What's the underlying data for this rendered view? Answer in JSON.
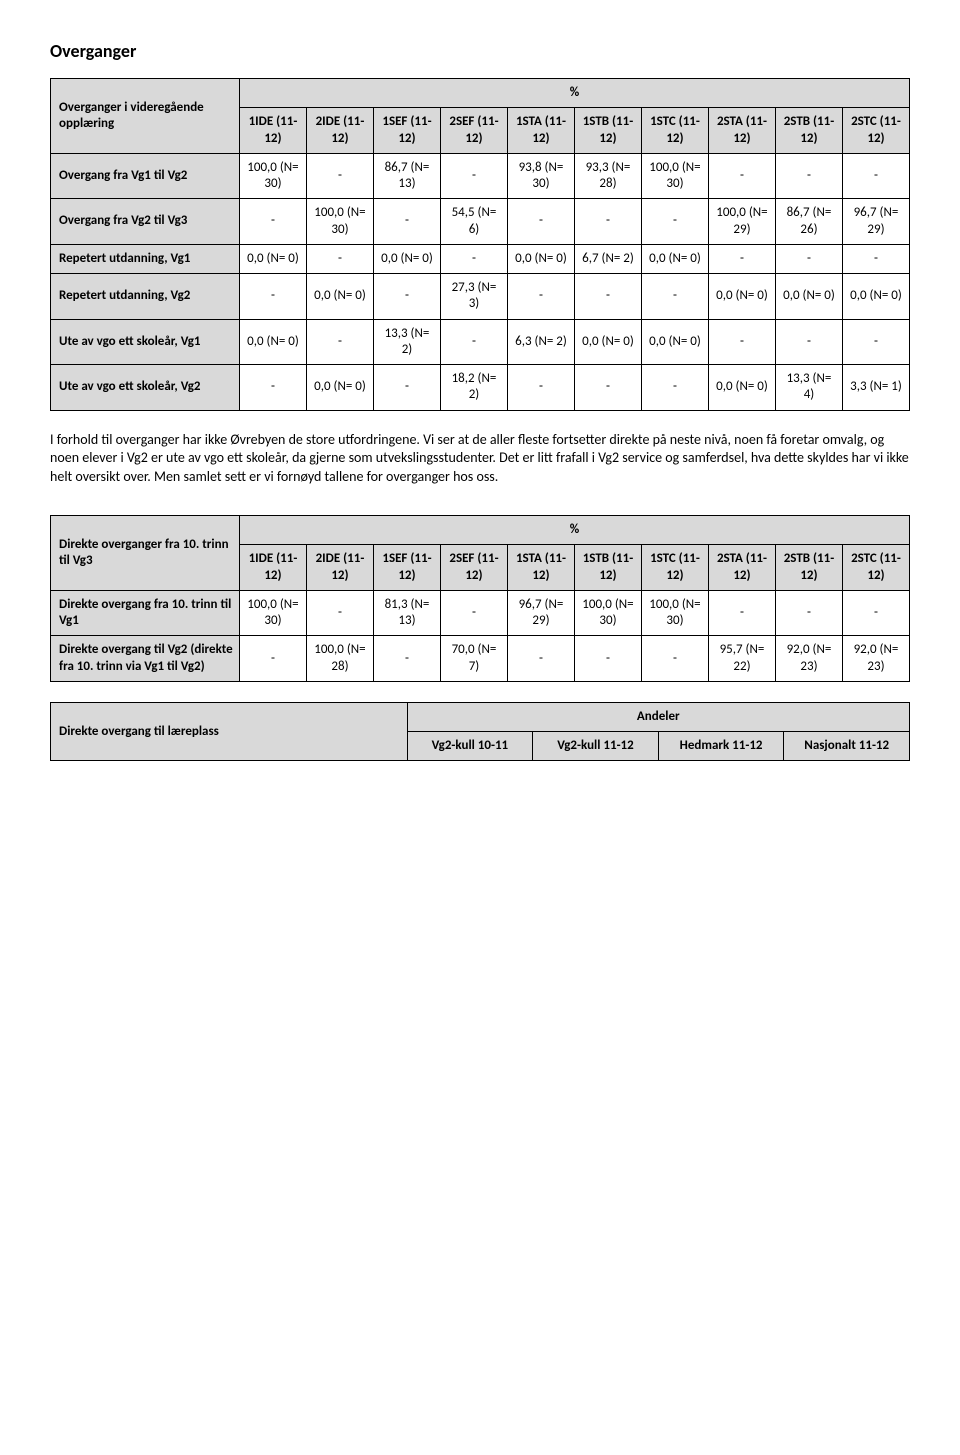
{
  "title1": "Overganger",
  "table1": {
    "corner": "Overganger i videregående opplæring",
    "pct": "%",
    "cols": [
      "1IDE (11-12)",
      "2IDE (11-12)",
      "1SEF (11-12)",
      "2SEF (11-12)",
      "1STA (11-12)",
      "1STB (11-12)",
      "1STC (11-12)",
      "2STA (11-12)",
      "2STB (11-12)",
      "2STC (11-12)"
    ],
    "rows": [
      {
        "label": "Overgang fra Vg1 til Vg2",
        "cells": [
          "100,0 (N= 30)",
          "-",
          "86,7 (N= 13)",
          "-",
          "93,8 (N= 30)",
          "93,3 (N= 28)",
          "100,0 (N= 30)",
          "-",
          "-",
          "-"
        ]
      },
      {
        "label": "Overgang fra Vg2 til Vg3",
        "cells": [
          "-",
          "100,0 (N= 30)",
          "-",
          "54,5 (N= 6)",
          "-",
          "-",
          "-",
          "100,0 (N= 29)",
          "86,7 (N= 26)",
          "96,7 (N= 29)"
        ]
      },
      {
        "label": "Repetert utdanning, Vg1",
        "cells": [
          "0,0 (N= 0)",
          "-",
          "0,0 (N= 0)",
          "-",
          "0,0 (N= 0)",
          "6,7 (N= 2)",
          "0,0 (N= 0)",
          "-",
          "-",
          "-"
        ]
      },
      {
        "label": "Repetert utdanning, Vg2",
        "cells": [
          "-",
          "0,0 (N= 0)",
          "-",
          "27,3 (N= 3)",
          "-",
          "-",
          "-",
          "0,0 (N= 0)",
          "0,0 (N= 0)",
          "0,0 (N= 0)"
        ]
      },
      {
        "label": "Ute av vgo ett skoleår, Vg1",
        "cells": [
          "0,0 (N= 0)",
          "-",
          "13,3 (N= 2)",
          "-",
          "6,3 (N= 2)",
          "0,0 (N= 0)",
          "0,0 (N= 0)",
          "-",
          "-",
          "-"
        ]
      },
      {
        "label": "Ute av vgo ett skoleår, Vg2",
        "cells": [
          "-",
          "0,0 (N= 0)",
          "-",
          "18,2 (N= 2)",
          "-",
          "-",
          "-",
          "0,0 (N= 0)",
          "13,3 (N= 4)",
          "3,3 (N= 1)"
        ]
      }
    ]
  },
  "paragraph": "I forhold til overganger har ikke Øvrebyen de store utfordringene. Vi ser at de aller fleste fortsetter direkte på neste nivå, noen få foretar omvalg, og noen elever i Vg2 er ute av vgo ett skoleår, da gjerne som utvekslingsstudenter. Det er litt frafall i Vg2 service og samferdsel, hva dette skyldes har vi ikke helt oversikt over. Men samlet sett er vi fornøyd tallene for overganger hos oss.",
  "table2": {
    "corner": "Direkte overganger fra 10. trinn til Vg3",
    "pct": "%",
    "cols": [
      "1IDE (11-12)",
      "2IDE (11-12)",
      "1SEF (11-12)",
      "2SEF (11-12)",
      "1STA (11-12)",
      "1STB (11-12)",
      "1STC (11-12)",
      "2STA (11-12)",
      "2STB (11-12)",
      "2STC (11-12)"
    ],
    "rows": [
      {
        "label": "Direkte overgang fra 10. trinn til Vg1",
        "cells": [
          "100,0 (N= 30)",
          "-",
          "81,3 (N= 13)",
          "-",
          "96,7 (N= 29)",
          "100,0 (N= 30)",
          "100,0 (N= 30)",
          "-",
          "-",
          "-"
        ]
      },
      {
        "label": "Direkte overgang til Vg2 (direkte fra 10. trinn via Vg1 til Vg2)",
        "cells": [
          "-",
          "100,0 (N= 28)",
          "-",
          "70,0 (N= 7)",
          "-",
          "-",
          "-",
          "95,7 (N= 22)",
          "92,0 (N= 23)",
          "92,0 (N= 23)"
        ]
      }
    ]
  },
  "table3": {
    "corner": "Direkte overgang til læreplass",
    "andeler": "Andeler",
    "cols": [
      "Vg2-kull 10-11",
      "Vg2-kull 11-12",
      "Hedmark 11-12",
      "Nasjonalt 11-12"
    ]
  }
}
